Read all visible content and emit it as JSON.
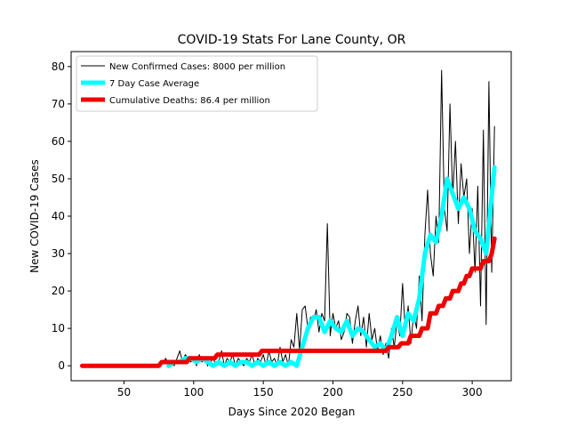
{
  "chart_data": {
    "type": "line",
    "title": "COVID-19 Stats For Lane County, OR",
    "xlabel": "Days Since 2020 Began",
    "ylabel": "New COVID-19 Cases",
    "xlim": [
      12,
      328
    ],
    "ylim": [
      -4,
      84
    ],
    "xticks": [
      50,
      100,
      150,
      200,
      250,
      300
    ],
    "yticks": [
      0,
      10,
      20,
      30,
      40,
      50,
      60,
      70,
      80
    ],
    "grid": false,
    "legend_position": "top-left",
    "series": [
      {
        "name": "New Confirmed Cases: 8000 per million",
        "color": "#000000",
        "width": 1,
        "x": [
          75,
          78,
          80,
          82,
          84,
          86,
          88,
          90,
          92,
          94,
          96,
          98,
          100,
          102,
          104,
          106,
          108,
          110,
          112,
          114,
          116,
          118,
          120,
          122,
          124,
          126,
          128,
          130,
          132,
          134,
          136,
          138,
          140,
          142,
          144,
          146,
          148,
          150,
          152,
          154,
          156,
          158,
          160,
          162,
          164,
          166,
          168,
          170,
          172,
          174,
          176,
          178,
          180,
          182,
          184,
          186,
          188,
          190,
          192,
          194,
          196,
          198,
          200,
          202,
          204,
          206,
          208,
          210,
          212,
          214,
          216,
          218,
          220,
          222,
          224,
          226,
          228,
          230,
          232,
          234,
          236,
          238,
          240,
          242,
          244,
          246,
          248,
          250,
          252,
          254,
          256,
          258,
          260,
          262,
          264,
          266,
          268,
          270,
          272,
          274,
          276,
          278,
          280,
          282,
          284,
          286,
          288,
          290,
          292,
          294,
          296,
          298,
          300,
          302,
          304,
          306,
          308,
          310,
          312,
          314,
          316
        ],
        "y": [
          0,
          1,
          2,
          0,
          1,
          0,
          2,
          4,
          1,
          3,
          2,
          1,
          2,
          0,
          3,
          1,
          2,
          0,
          1,
          2,
          0,
          1,
          4,
          0,
          2,
          1,
          3,
          0,
          2,
          1,
          0,
          2,
          1,
          3,
          0,
          2,
          1,
          3,
          0,
          4,
          1,
          2,
          0,
          5,
          1,
          3,
          0,
          7,
          5,
          14,
          4,
          15,
          16,
          10,
          13,
          12,
          15,
          9,
          14,
          12,
          38,
          8,
          14,
          10,
          12,
          7,
          9,
          14,
          13,
          6,
          12,
          16,
          8,
          13,
          5,
          14,
          7,
          10,
          4,
          8,
          3,
          6,
          2,
          10,
          5,
          12,
          8,
          22,
          9,
          16,
          6,
          14,
          10,
          24,
          12,
          35,
          47,
          30,
          24,
          40,
          33,
          79,
          42,
          36,
          70,
          45,
          60,
          38,
          54,
          45,
          50,
          30,
          42,
          25,
          48,
          16,
          63,
          11,
          76,
          25,
          64
        ]
      },
      {
        "name": "7 Day Case Average",
        "color": "#00ffff",
        "width": 5,
        "x": [
          82,
          86,
          90,
          94,
          98,
          102,
          106,
          110,
          114,
          118,
          122,
          126,
          130,
          134,
          138,
          142,
          146,
          150,
          154,
          158,
          162,
          166,
          170,
          174,
          178,
          182,
          186,
          190,
          194,
          198,
          202,
          206,
          210,
          214,
          218,
          222,
          226,
          230,
          234,
          238,
          242,
          246,
          250,
          254,
          258,
          262,
          266,
          270,
          274,
          278,
          282,
          286,
          290,
          294,
          298,
          302,
          306,
          310,
          316
        ],
        "y": [
          0,
          1,
          1,
          2,
          2,
          1,
          2,
          1,
          0,
          1,
          0,
          1,
          0,
          1,
          1,
          0,
          1,
          0,
          1,
          0,
          1,
          0,
          1,
          0,
          5,
          10,
          13,
          13,
          9,
          12,
          10,
          9,
          12,
          8,
          10,
          9,
          7,
          5,
          6,
          4,
          8,
          13,
          8,
          14,
          12,
          18,
          30,
          35,
          33,
          40,
          50,
          46,
          42,
          45,
          42,
          36,
          34,
          30,
          53
        ]
      },
      {
        "name": "Cumulative Deaths: 86.4 per million",
        "color": "#ee0000",
        "width": 5,
        "x": [
          20,
          75,
          77,
          95,
          97,
          115,
          117,
          147,
          149,
          228,
          230,
          238,
          240,
          247,
          249,
          254,
          256,
          262,
          264,
          268,
          270,
          274,
          276,
          279,
          281,
          284,
          286,
          290,
          292,
          294,
          296,
          298,
          300,
          306,
          308,
          312,
          314,
          316
        ],
        "y": [
          0,
          0,
          1,
          1,
          2,
          2,
          3,
          3,
          4,
          4,
          4,
          4,
          5,
          5,
          6,
          6,
          8,
          8,
          10,
          10,
          14,
          14,
          16,
          16,
          18,
          18,
          20,
          20,
          22,
          22,
          24,
          24,
          26,
          26,
          28,
          28,
          30,
          34
        ]
      }
    ]
  }
}
